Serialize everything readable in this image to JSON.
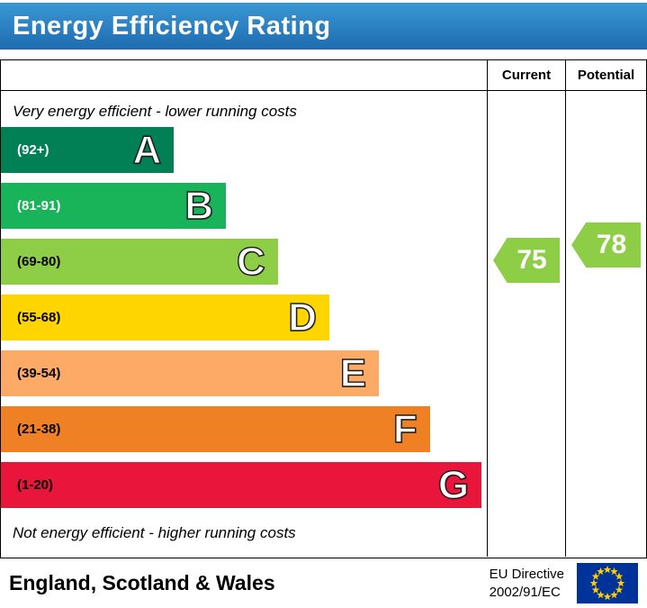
{
  "header": {
    "title": "Energy Efficiency Rating"
  },
  "table": {
    "current_label": "Current",
    "potential_label": "Potential"
  },
  "scale": {
    "top_note": "Very energy efficient - lower running costs",
    "bottom_note": "Not energy efficient - higher running costs",
    "bands": [
      {
        "letter": "A",
        "range": "(92+)",
        "color": "#008054",
        "width_pct": 35.6,
        "range_color": "#ffffff"
      },
      {
        "letter": "B",
        "range": "(81-91)",
        "color": "#19b459",
        "width_pct": 46.3,
        "range_color": "#ffffff"
      },
      {
        "letter": "C",
        "range": "(69-80)",
        "color": "#8dce46",
        "width_pct": 57.0,
        "range_color": "#000000"
      },
      {
        "letter": "D",
        "range": "(55-68)",
        "color": "#ffd500",
        "width_pct": 67.6,
        "range_color": "#000000"
      },
      {
        "letter": "E",
        "range": "(39-54)",
        "color": "#fcaa65",
        "width_pct": 77.8,
        "range_color": "#000000"
      },
      {
        "letter": "F",
        "range": "(21-38)",
        "color": "#ef8023",
        "width_pct": 88.3,
        "range_color": "#000000"
      },
      {
        "letter": "G",
        "range": "(1-20)",
        "color": "#e9153b",
        "width_pct": 98.9,
        "range_color": "#000000"
      }
    ]
  },
  "ratings": {
    "current": {
      "value": "75",
      "color": "#8dce46"
    },
    "potential": {
      "value": "78",
      "color": "#8dce46"
    }
  },
  "footer": {
    "region": "England, Scotland & Wales",
    "directive_line1": "EU Directive",
    "directive_line2": "2002/91/EC",
    "flag_colors": {
      "field": "#003399",
      "stars": "#ffcc00"
    }
  },
  "chart_data": {
    "type": "bar",
    "title": "Energy Efficiency Rating",
    "categories": [
      "A",
      "B",
      "C",
      "D",
      "E",
      "F",
      "G"
    ],
    "band_ranges": [
      "92+",
      "81-91",
      "69-80",
      "55-68",
      "39-54",
      "21-38",
      "1-20"
    ],
    "band_colors": [
      "#008054",
      "#19b459",
      "#8dce46",
      "#ffd500",
      "#fcaa65",
      "#ef8023",
      "#e9153b"
    ],
    "bar_relative_widths_pct": [
      35.6,
      46.3,
      57.0,
      67.6,
      77.8,
      88.3,
      98.9
    ],
    "current": 75,
    "potential": 78,
    "current_band": "C",
    "potential_band": "C",
    "notes": [
      "Very energy efficient - lower running costs",
      "Not energy efficient - higher running costs"
    ],
    "region": "England, Scotland & Wales",
    "directive": "EU Directive 2002/91/EC",
    "legend_position": "none",
    "grid": false
  }
}
